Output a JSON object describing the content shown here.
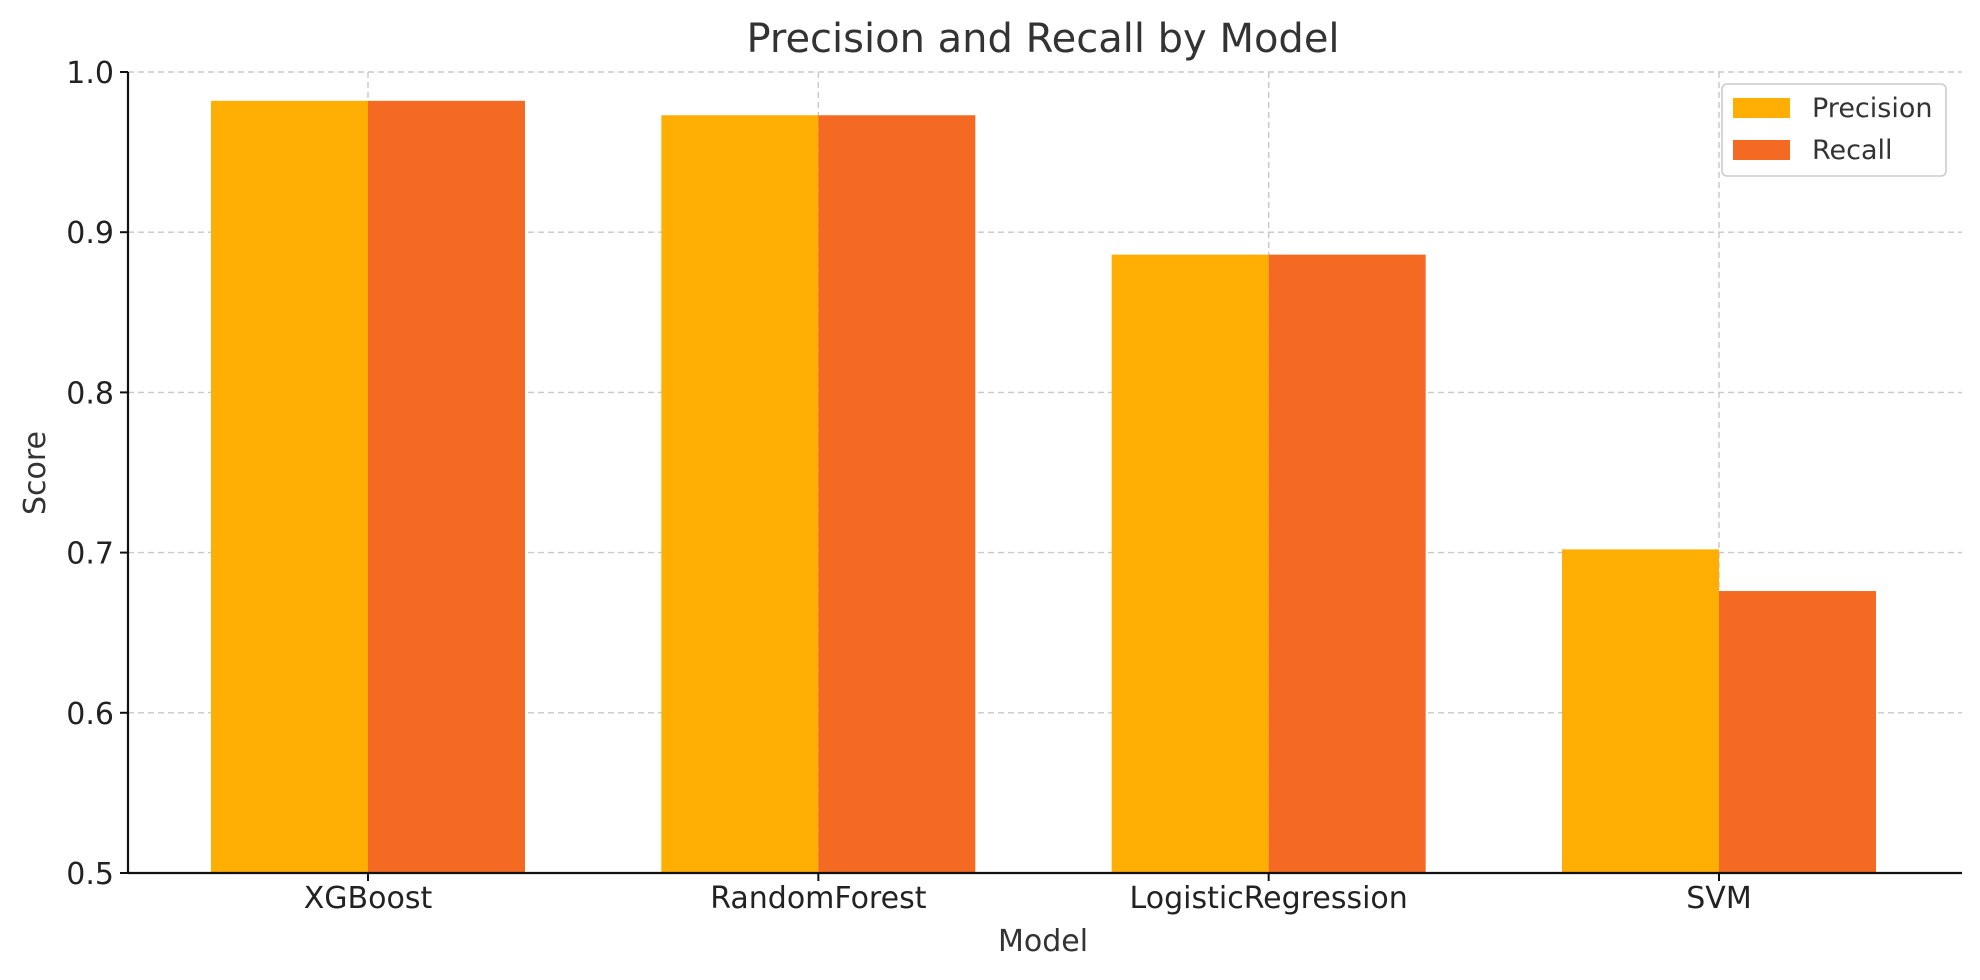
{
  "chart_data": {
    "type": "bar",
    "title": "Precision and Recall by Model",
    "xlabel": "Model",
    "ylabel": "Score",
    "categories": [
      "XGBoost",
      "RandomForest",
      "LogisticRegression",
      "SVM"
    ],
    "series": [
      {
        "name": "Precision",
        "color": "#FFAE03",
        "values": [
          0.982,
          0.973,
          0.886,
          0.702
        ]
      },
      {
        "name": "Recall",
        "color": "#F46A22",
        "values": [
          0.982,
          0.973,
          0.886,
          0.676
        ]
      }
    ],
    "ylim": [
      0.5,
      1.0
    ],
    "yticks": [
      "0.5",
      "0.6",
      "0.7",
      "0.8",
      "0.9",
      "1.0"
    ],
    "grid": true,
    "legend": "top-right"
  }
}
